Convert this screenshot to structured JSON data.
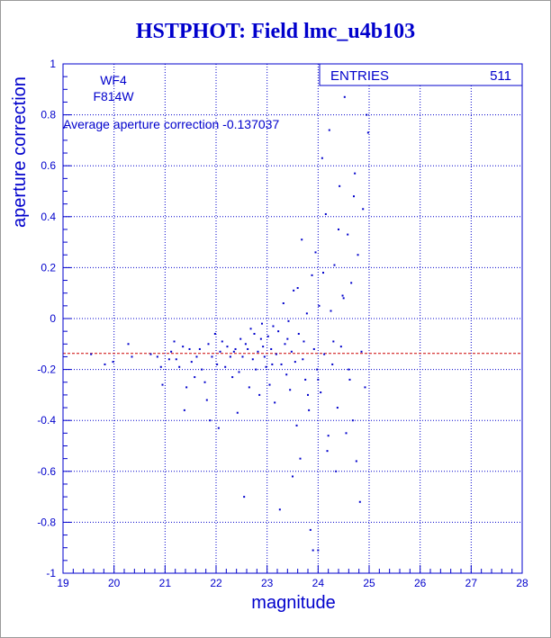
{
  "chart_data": {
    "type": "scatter",
    "title": "HSTPHOT: Field lmc_u4b103",
    "xlabel": "magnitude",
    "ylabel": "aperture correction",
    "xlim": [
      19,
      28
    ],
    "ylim": [
      -1,
      1
    ],
    "x_ticks": [
      "19",
      "20",
      "21",
      "22",
      "23",
      "24",
      "25",
      "26",
      "27",
      "28"
    ],
    "y_ticks": [
      "-1",
      "-0.8",
      "-0.6",
      "-0.4",
      "-0.2",
      "0",
      "0.2",
      "0.4",
      "0.6",
      "0.8",
      "1"
    ],
    "grid": true,
    "annotations": {
      "chip": "WF4",
      "filter": "F814W",
      "average_text": "Average aperture correction -0.137037"
    },
    "stats": {
      "entries_label": "ENTRIES",
      "entries_value": "511"
    },
    "reference_line": {
      "y": -0.137037,
      "color": "#cc0000",
      "style": "dashed"
    },
    "marker_color": "#0000cc",
    "points": [
      [
        19.55,
        -0.14
      ],
      [
        19.82,
        -0.18
      ],
      [
        19.98,
        -0.17
      ],
      [
        20.28,
        -0.1
      ],
      [
        20.35,
        -0.15
      ],
      [
        20.72,
        -0.14
      ],
      [
        20.85,
        -0.15
      ],
      [
        20.92,
        -0.19
      ],
      [
        20.95,
        -0.26
      ],
      [
        21.08,
        -0.16
      ],
      [
        21.12,
        -0.13
      ],
      [
        21.18,
        -0.09
      ],
      [
        21.22,
        -0.16
      ],
      [
        21.28,
        -0.19
      ],
      [
        21.35,
        -0.11
      ],
      [
        21.38,
        -0.36
      ],
      [
        21.42,
        -0.27
      ],
      [
        21.48,
        -0.12
      ],
      [
        21.52,
        -0.17
      ],
      [
        21.58,
        -0.23
      ],
      [
        21.62,
        -0.15
      ],
      [
        21.68,
        -0.12
      ],
      [
        21.72,
        -0.2
      ],
      [
        21.78,
        -0.25
      ],
      [
        21.82,
        -0.32
      ],
      [
        21.85,
        -0.1
      ],
      [
        21.88,
        -0.4
      ],
      [
        21.92,
        -0.15
      ],
      [
        21.98,
        -0.06
      ],
      [
        22.02,
        -0.18
      ],
      [
        22.05,
        -0.43
      ],
      [
        22.08,
        -0.13
      ],
      [
        22.12,
        -0.09
      ],
      [
        22.18,
        -0.19
      ],
      [
        22.22,
        -0.11
      ],
      [
        22.28,
        -0.15
      ],
      [
        22.32,
        -0.23
      ],
      [
        22.35,
        -0.13
      ],
      [
        22.38,
        -0.12
      ],
      [
        22.42,
        -0.37
      ],
      [
        22.45,
        -0.21
      ],
      [
        22.48,
        -0.08
      ],
      [
        22.52,
        -0.15
      ],
      [
        22.55,
        -0.7
      ],
      [
        22.58,
        -0.1
      ],
      [
        22.62,
        -0.12
      ],
      [
        22.65,
        -0.27
      ],
      [
        22.68,
        -0.04
      ],
      [
        22.72,
        -0.16
      ],
      [
        22.75,
        -0.06
      ],
      [
        22.78,
        -0.2
      ],
      [
        22.82,
        -0.13
      ],
      [
        22.85,
        -0.3
      ],
      [
        22.88,
        -0.08
      ],
      [
        22.92,
        -0.11
      ],
      [
        22.95,
        -0.15
      ],
      [
        22.98,
        -0.19
      ],
      [
        23.02,
        -0.07
      ],
      [
        23.05,
        -0.26
      ],
      [
        23.08,
        -0.12
      ],
      [
        23.12,
        -0.03
      ],
      [
        23.15,
        -0.33
      ],
      [
        23.18,
        -0.14
      ],
      [
        23.22,
        -0.05
      ],
      [
        23.25,
        -0.75
      ],
      [
        23.28,
        -0.18
      ],
      [
        23.32,
        0.06
      ],
      [
        23.35,
        -0.1
      ],
      [
        23.38,
        -0.22
      ],
      [
        23.42,
        -0.01
      ],
      [
        23.45,
        -0.28
      ],
      [
        23.48,
        -0.13
      ],
      [
        23.52,
        0.11
      ],
      [
        23.55,
        -0.17
      ],
      [
        23.58,
        -0.42
      ],
      [
        23.62,
        -0.06
      ],
      [
        23.65,
        -0.55
      ],
      [
        23.68,
        0.31
      ],
      [
        23.72,
        -0.09
      ],
      [
        23.75,
        -0.24
      ],
      [
        23.78,
        0.02
      ],
      [
        23.82,
        -0.36
      ],
      [
        23.85,
        -0.83
      ],
      [
        23.88,
        0.17
      ],
      [
        23.92,
        -0.12
      ],
      [
        23.95,
        0.26
      ],
      [
        23.98,
        -0.2
      ],
      [
        24.02,
        0.05
      ],
      [
        24.05,
        -0.29
      ],
      [
        24.08,
        0.63
      ],
      [
        24.12,
        -0.14
      ],
      [
        24.15,
        0.41
      ],
      [
        24.18,
        -0.52
      ],
      [
        24.22,
        0.74
      ],
      [
        24.25,
        0.03
      ],
      [
        24.28,
        -0.18
      ],
      [
        24.32,
        0.21
      ],
      [
        24.35,
        -0.6
      ],
      [
        24.38,
        -0.35
      ],
      [
        24.42,
        0.52
      ],
      [
        24.45,
        -0.11
      ],
      [
        24.48,
        0.09
      ],
      [
        24.52,
        0.87
      ],
      [
        24.55,
        -0.45
      ],
      [
        24.58,
        0.33
      ],
      [
        24.62,
        -0.24
      ],
      [
        24.65,
        0.14
      ],
      [
        24.68,
        -0.4
      ],
      [
        24.72,
        0.57
      ],
      [
        24.75,
        -0.56
      ],
      [
        24.78,
        0.25
      ],
      [
        24.82,
        -0.72
      ],
      [
        24.85,
        -0.13
      ],
      [
        24.88,
        0.43
      ],
      [
        24.92,
        -0.27
      ],
      [
        24.95,
        0.8
      ],
      [
        24.98,
        0.73
      ],
      [
        23.1,
        -0.18
      ],
      [
        23.4,
        -0.08
      ],
      [
        23.7,
        -0.16
      ],
      [
        24.0,
        -0.24
      ],
      [
        24.3,
        -0.09
      ],
      [
        24.6,
        -0.2
      ],
      [
        22.9,
        -0.02
      ],
      [
        23.6,
        0.12
      ],
      [
        24.1,
        0.18
      ],
      [
        24.4,
        0.35
      ],
      [
        24.7,
        0.48
      ],
      [
        24.2,
        -0.46
      ],
      [
        23.9,
        -0.91
      ],
      [
        24.0,
        -0.91
      ],
      [
        24.5,
        0.08
      ],
      [
        23.8,
        -0.3
      ],
      [
        23.5,
        -0.62
      ]
    ]
  }
}
